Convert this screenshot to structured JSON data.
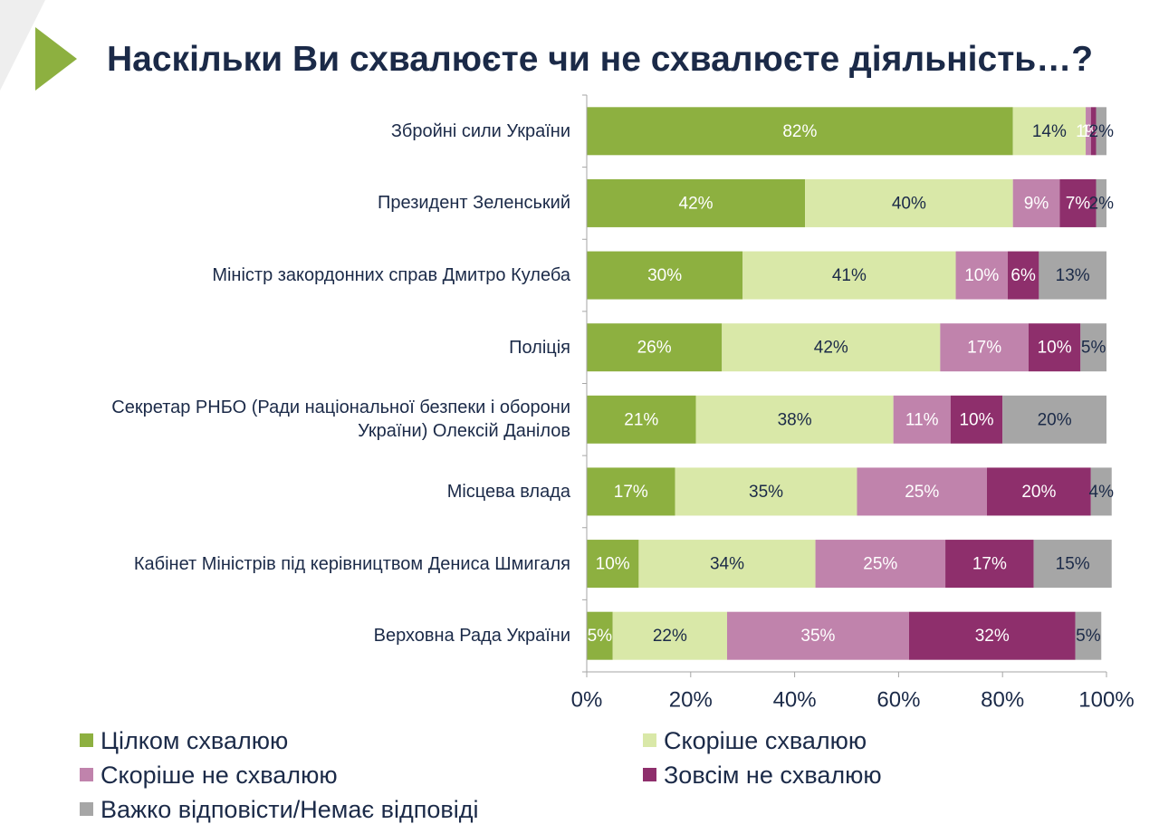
{
  "chart_data": {
    "type": "bar",
    "orientation": "horizontal",
    "stacked": true,
    "title": "Наскільки Ви схвалюєте чи не схвалюєте діяльність…?",
    "categories": [
      "Збройні сили України",
      "Президент Зеленський",
      "Міністр закордонних справ Дмитро Кулеба",
      "Поліція",
      "Секретар РНБО (Ради національної безпеки і оборони України) Олексій Данілов",
      "Місцева влада",
      "Кабінет Міністрів під керівництвом Дениса Шмигаля",
      "Верховна Рада України"
    ],
    "series": [
      {
        "name": "Цілком схвалюю",
        "color": "#8db040",
        "label_color": "#ffffff",
        "values": [
          82,
          42,
          30,
          26,
          21,
          17,
          10,
          5
        ],
        "value_labels": [
          "82%",
          "42%",
          "30%",
          "26%",
          "21%",
          "17%",
          "10%",
          "5%"
        ]
      },
      {
        "name": "Скоріше схвалюю",
        "color": "#d9e8a8",
        "label_color": "#1b2a48",
        "values": [
          14,
          40,
          41,
          42,
          38,
          35,
          34,
          22
        ],
        "value_labels": [
          "14%",
          "40%",
          "41%",
          "42%",
          "38%",
          "35%",
          "34%",
          "22%"
        ]
      },
      {
        "name": "Скоріше не схвалюю",
        "color": "#c083ac",
        "label_color": "#ffffff",
        "values": [
          1,
          9,
          10,
          17,
          11,
          25,
          25,
          35
        ],
        "value_labels": [
          "1%",
          "9%",
          "10%",
          "17%",
          "11%",
          "25%",
          "25%",
          "35%"
        ]
      },
      {
        "name": "Зовсім не схвалюю",
        "color": "#8e2f6c",
        "label_color": "#ffffff",
        "values": [
          1,
          7,
          6,
          10,
          10,
          20,
          17,
          32
        ],
        "value_labels": [
          "1%",
          "7%",
          "6%",
          "10%",
          "10%",
          "20%",
          "17%",
          "32%"
        ]
      },
      {
        "name": "Важко відповісти/Немає відповіді",
        "color": "#a6a6a6",
        "label_color": "#1b2a48",
        "values": [
          2,
          2,
          13,
          5,
          20,
          4,
          15,
          5
        ],
        "value_labels": [
          "2%",
          "2%",
          "13%",
          "5%",
          "20%",
          "4%",
          "15%",
          "5%"
        ]
      }
    ],
    "xlim": [
      0,
      100
    ],
    "xticks": [
      {
        "value": 0,
        "label": "0%"
      },
      {
        "value": 20,
        "label": "20%"
      },
      {
        "value": 40,
        "label": "40%"
      },
      {
        "value": 60,
        "label": "60%"
      },
      {
        "value": 80,
        "label": "80%"
      },
      {
        "value": 100,
        "label": "100%"
      }
    ]
  }
}
